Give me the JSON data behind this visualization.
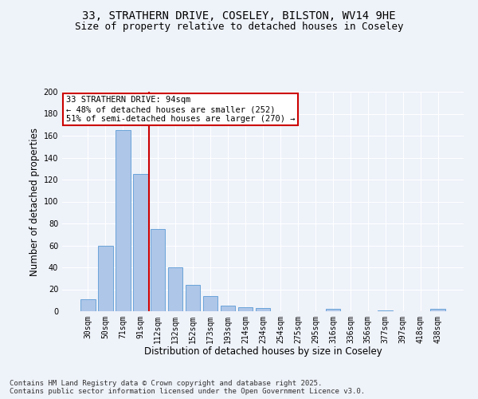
{
  "title1": "33, STRATHERN DRIVE, COSELEY, BILSTON, WV14 9HE",
  "title2": "Size of property relative to detached houses in Coseley",
  "xlabel": "Distribution of detached houses by size in Coseley",
  "ylabel": "Number of detached properties",
  "categories": [
    "30sqm",
    "50sqm",
    "71sqm",
    "91sqm",
    "112sqm",
    "132sqm",
    "152sqm",
    "173sqm",
    "193sqm",
    "214sqm",
    "234sqm",
    "254sqm",
    "275sqm",
    "295sqm",
    "316sqm",
    "336sqm",
    "356sqm",
    "377sqm",
    "397sqm",
    "418sqm",
    "438sqm"
  ],
  "values": [
    11,
    60,
    165,
    125,
    75,
    40,
    24,
    14,
    5,
    4,
    3,
    0,
    0,
    0,
    2,
    0,
    0,
    1,
    0,
    0,
    2
  ],
  "bar_color": "#aec6e8",
  "bar_edge_color": "#5b9bd5",
  "vline_x": 3.5,
  "vline_color": "#cc0000",
  "annotation_text": "33 STRATHERN DRIVE: 94sqm\n← 48% of detached houses are smaller (252)\n51% of semi-detached houses are larger (270) →",
  "annotation_box_color": "#cc0000",
  "footnote": "Contains HM Land Registry data © Crown copyright and database right 2025.\nContains public sector information licensed under the Open Government Licence v3.0.",
  "ylim": [
    0,
    200
  ],
  "yticks": [
    0,
    20,
    40,
    60,
    80,
    100,
    120,
    140,
    160,
    180,
    200
  ],
  "background_color": "#eef2f9",
  "grid_color": "#ffffff",
  "title_fontsize": 10,
  "subtitle_fontsize": 9,
  "axis_label_fontsize": 8.5,
  "tick_fontsize": 7,
  "footnote_fontsize": 6.5,
  "annotation_fontsize": 7.5
}
